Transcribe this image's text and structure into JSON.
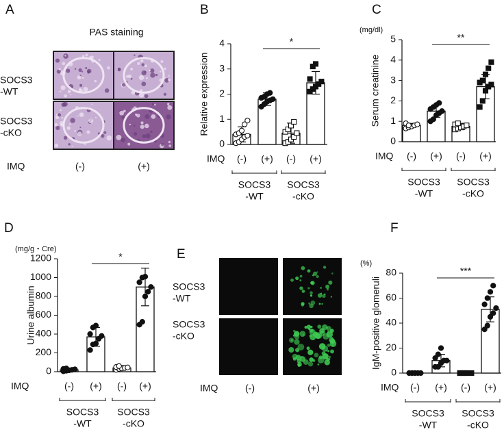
{
  "chart_data": [
    {
      "type": "bar",
      "panel_label": "B",
      "y_label": "Relative expression",
      "ylim": [
        0,
        4
      ],
      "yticks": [
        0,
        1,
        2,
        3,
        4
      ],
      "imq_label": "IMQ",
      "categories": [
        "(-)",
        "(+)",
        "(-)",
        "(+)"
      ],
      "groups": [
        [
          "SOCS3",
          "-WT"
        ],
        [
          "SOCS3",
          "-cKO"
        ]
      ],
      "values": [
        0.4,
        1.8,
        0.45,
        2.45
      ],
      "errors": [
        0.3,
        0.25,
        0.4,
        0.45
      ],
      "points": [
        [
          0.05,
          0.1,
          0.2,
          0.3,
          0.35,
          0.4,
          0.45,
          0.55,
          0.8,
          0.95
        ],
        [
          1.5,
          1.6,
          1.7,
          1.75,
          1.8,
          1.85,
          1.9,
          2.0,
          2.05
        ],
        [
          0.05,
          0.1,
          0.2,
          0.3,
          0.45,
          0.5,
          0.6,
          0.75,
          0.9
        ],
        [
          2.1,
          2.2,
          2.3,
          2.4,
          2.5,
          2.6,
          3.1,
          3.2
        ]
      ],
      "markers": [
        {
          "shape": "circle",
          "filled": false
        },
        {
          "shape": "circle",
          "filled": true
        },
        {
          "shape": "square",
          "filled": false
        },
        {
          "shape": "square",
          "filled": true
        }
      ],
      "significance": {
        "label": "*",
        "from": 1,
        "to": 3
      }
    },
    {
      "type": "bar",
      "panel_label": "C",
      "unit_label": "(mg/dl)",
      "y_label": "Serum creatinine",
      "ylim": [
        0,
        5
      ],
      "yticks": [
        0,
        1,
        2,
        3,
        4,
        5
      ],
      "imq_label": "IMQ",
      "categories": [
        "(-)",
        "(+)",
        "(-)",
        "(+)"
      ],
      "groups": [
        [
          "SOCS3",
          "-WT"
        ],
        [
          "SOCS3",
          "-cKO"
        ]
      ],
      "values": [
        0.8,
        1.5,
        0.75,
        2.7
      ],
      "errors": [
        0.1,
        0.3,
        0.15,
        0.6
      ],
      "points": [
        [
          0.65,
          0.7,
          0.75,
          0.8,
          0.85,
          0.9,
          0.8
        ],
        [
          1.0,
          1.1,
          1.3,
          1.4,
          1.5,
          1.6,
          1.7,
          1.8,
          1.9
        ],
        [
          0.6,
          0.65,
          0.7,
          0.75,
          0.8,
          0.85,
          0.9
        ],
        [
          1.7,
          2.0,
          2.5,
          2.7,
          2.8,
          2.9,
          3.0,
          3.3,
          3.6,
          3.9
        ]
      ],
      "markers": [
        {
          "shape": "circle",
          "filled": false
        },
        {
          "shape": "circle",
          "filled": true
        },
        {
          "shape": "square",
          "filled": false
        },
        {
          "shape": "square",
          "filled": true
        }
      ],
      "significance": {
        "label": "**",
        "from": 1,
        "to": 3
      }
    },
    {
      "type": "bar",
      "panel_label": "D",
      "unit_label": "(mg/g・Cre)",
      "y_label": "Urine albumin",
      "ylim": [
        0,
        1200
      ],
      "yticks": [
        0,
        200,
        400,
        600,
        800,
        1000,
        1200
      ],
      "imq_label": "IMQ",
      "categories": [
        "(-)",
        "(+)",
        "(-)",
        "(+)"
      ],
      "groups": [
        [
          "SOCS3",
          "-WT"
        ],
        [
          "SOCS3",
          "-cKO"
        ]
      ],
      "values": [
        20,
        370,
        40,
        900
      ],
      "errors": [
        15,
        100,
        25,
        200
      ],
      "points": [
        [
          5,
          10,
          15,
          20,
          25,
          30,
          35
        ],
        [
          230,
          290,
          300,
          350,
          380,
          400,
          470,
          490
        ],
        [
          20,
          30,
          35,
          40,
          45,
          50,
          60
        ],
        [
          500,
          530,
          800,
          850,
          900,
          950,
          1000,
          1010
        ]
      ],
      "markers": [
        {
          "shape": "circle",
          "filled": true
        },
        {
          "shape": "circle",
          "filled": true
        },
        {
          "shape": "circle",
          "filled": false
        },
        {
          "shape": "circle",
          "filled": true
        }
      ],
      "significance": {
        "label": "*",
        "from": 1,
        "to": 3
      }
    },
    {
      "type": "bar",
      "panel_label": "F",
      "unit_label": "(%)",
      "y_label": "IgM-positive glomeruli",
      "ylim": [
        0,
        80
      ],
      "yticks": [
        0,
        20,
        40,
        60,
        80
      ],
      "imq_label": "IMQ",
      "categories": [
        "(-)",
        "(+)",
        "(-)",
        "(+)"
      ],
      "groups": [
        [
          "SOCS3",
          "-WT"
        ],
        [
          "SOCS3",
          "-cKO"
        ]
      ],
      "values": [
        0,
        10,
        0,
        51
      ],
      "errors": [
        0,
        5,
        0,
        10
      ],
      "points": [
        [
          0,
          0,
          0,
          0,
          0,
          0,
          0,
          0
        ],
        [
          5,
          5,
          8,
          10,
          10,
          12,
          15,
          20
        ],
        [
          0,
          0,
          0,
          0,
          0,
          0,
          0,
          0
        ],
        [
          35,
          38,
          45,
          48,
          52,
          55,
          60,
          65,
          70
        ]
      ],
      "markers": [
        {
          "shape": "circle",
          "filled": true
        },
        {
          "shape": "circle",
          "filled": true
        },
        {
          "shape": "square",
          "filled": true
        },
        {
          "shape": "circle",
          "filled": true
        }
      ],
      "significance": {
        "label": "***",
        "from": 1,
        "to": 3
      }
    }
  ],
  "image_panels": [
    {
      "label": "A",
      "title": "PAS staining",
      "rows": [
        [
          "SOCS3",
          "-WT"
        ],
        [
          "SOCS3",
          "-cKO"
        ]
      ],
      "imq_label": "IMQ",
      "columns": [
        "(-)",
        "(+)"
      ]
    },
    {
      "label": "E",
      "rows": [
        [
          "SOCS3",
          "-WT"
        ],
        [
          "SOCS3",
          "-cKO"
        ]
      ],
      "imq_label": "IMQ",
      "columns": [
        "(-)",
        "(+)"
      ]
    }
  ]
}
